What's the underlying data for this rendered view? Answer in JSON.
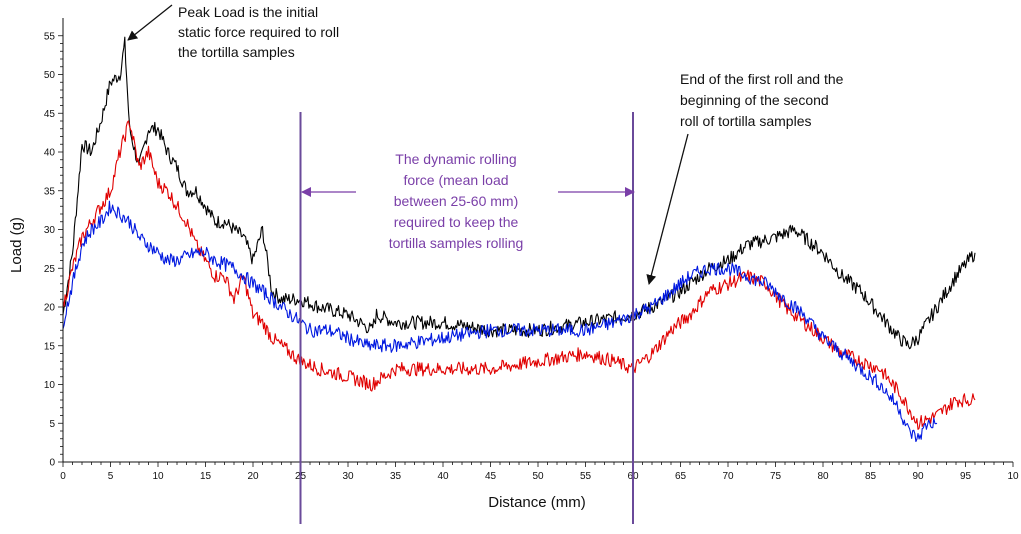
{
  "chart_data": {
    "type": "line",
    "xlabel": "Distance (mm)",
    "ylabel": "Load (g)",
    "xlim": [
      0,
      100
    ],
    "ylim": [
      0,
      56
    ],
    "x_ticks": [
      "0",
      "5",
      "10",
      "15",
      "20",
      "25",
      "30",
      "35",
      "40",
      "45",
      "50",
      "55",
      "60",
      "65",
      "70",
      "75",
      "80",
      "85",
      "90",
      "95",
      "10"
    ],
    "y_ticks": [
      "0",
      "5",
      "10",
      "15",
      "20",
      "25",
      "30",
      "35",
      "40",
      "45",
      "50",
      "55"
    ],
    "grid": false,
    "series": [
      {
        "color": "#000000",
        "points": [
          [
            0,
            19
          ],
          [
            1,
            27
          ],
          [
            1.5,
            34
          ],
          [
            2,
            41
          ],
          [
            3,
            40
          ],
          [
            4,
            44
          ],
          [
            5,
            49
          ],
          [
            6,
            50
          ],
          [
            6.5,
            54
          ],
          [
            7,
            43
          ],
          [
            8,
            38
          ],
          [
            9,
            43
          ],
          [
            10,
            43
          ],
          [
            11,
            40
          ],
          [
            12,
            38
          ],
          [
            13,
            35
          ],
          [
            14,
            35
          ],
          [
            15,
            33
          ],
          [
            16,
            31
          ],
          [
            17,
            31
          ],
          [
            18,
            30
          ],
          [
            19,
            29
          ],
          [
            20,
            26
          ],
          [
            21,
            30
          ],
          [
            22,
            22
          ],
          [
            23,
            21
          ],
          [
            25,
            21
          ],
          [
            27,
            20
          ],
          [
            30,
            19
          ],
          [
            32.5,
            17
          ],
          [
            33,
            19
          ],
          [
            35,
            18
          ],
          [
            40,
            18
          ],
          [
            45,
            17
          ],
          [
            50,
            17
          ],
          [
            55,
            18
          ],
          [
            60,
            19
          ],
          [
            62,
            20
          ],
          [
            65,
            22
          ],
          [
            68,
            25
          ],
          [
            70,
            26
          ],
          [
            72,
            28
          ],
          [
            75,
            29
          ],
          [
            77,
            30
          ],
          [
            78,
            29
          ],
          [
            80,
            27
          ],
          [
            82,
            24
          ],
          [
            84,
            22
          ],
          [
            86,
            19
          ],
          [
            88,
            16
          ],
          [
            89,
            15
          ],
          [
            90,
            16
          ],
          [
            92,
            20
          ],
          [
            94,
            24
          ],
          [
            96,
            27
          ]
        ]
      },
      {
        "color": "#e00000",
        "points": [
          [
            0,
            20
          ],
          [
            1,
            25
          ],
          [
            2,
            29
          ],
          [
            3,
            31
          ],
          [
            4,
            33
          ],
          [
            5,
            35
          ],
          [
            6,
            40
          ],
          [
            7,
            44
          ],
          [
            8,
            38
          ],
          [
            9,
            40
          ],
          [
            10,
            36
          ],
          [
            11,
            35
          ],
          [
            12,
            33
          ],
          [
            13,
            31
          ],
          [
            14,
            28
          ],
          [
            15,
            26
          ],
          [
            16,
            24
          ],
          [
            17,
            24
          ],
          [
            18,
            21
          ],
          [
            19,
            24
          ],
          [
            20,
            19
          ],
          [
            21,
            18
          ],
          [
            22,
            16
          ],
          [
            24,
            14
          ],
          [
            25,
            13
          ],
          [
            27,
            12
          ],
          [
            30,
            11
          ],
          [
            32.5,
            10
          ],
          [
            35,
            12
          ],
          [
            40,
            12
          ],
          [
            45,
            12
          ],
          [
            50,
            13
          ],
          [
            55,
            14
          ],
          [
            58,
            13
          ],
          [
            60,
            12
          ],
          [
            62,
            14
          ],
          [
            64,
            17
          ],
          [
            66,
            19
          ],
          [
            68,
            22
          ],
          [
            70,
            23
          ],
          [
            72,
            24
          ],
          [
            74,
            23
          ],
          [
            76,
            20
          ],
          [
            78,
            18
          ],
          [
            80,
            16
          ],
          [
            82,
            14
          ],
          [
            84,
            13
          ],
          [
            86,
            12
          ],
          [
            88,
            9
          ],
          [
            89,
            7
          ],
          [
            90,
            5
          ],
          [
            92,
            6
          ],
          [
            94,
            8
          ],
          [
            96,
            8
          ]
        ]
      },
      {
        "color": "#0018e0",
        "points": [
          [
            0,
            18
          ],
          [
            1,
            23
          ],
          [
            2,
            28
          ],
          [
            3,
            30
          ],
          [
            4,
            31
          ],
          [
            5,
            33
          ],
          [
            6,
            32
          ],
          [
            7,
            31
          ],
          [
            8,
            29
          ],
          [
            9,
            28
          ],
          [
            10,
            27
          ],
          [
            11,
            26
          ],
          [
            12,
            26
          ],
          [
            14,
            27
          ],
          [
            15,
            27
          ],
          [
            16,
            26
          ],
          [
            18,
            25
          ],
          [
            20,
            23
          ],
          [
            22,
            21
          ],
          [
            24,
            19
          ],
          [
            26,
            17
          ],
          [
            28,
            17
          ],
          [
            30,
            16
          ],
          [
            32,
            15
          ],
          [
            35,
            15
          ],
          [
            40,
            16
          ],
          [
            45,
            17
          ],
          [
            50,
            17
          ],
          [
            55,
            17
          ],
          [
            58,
            18
          ],
          [
            60,
            19
          ],
          [
            62,
            20
          ],
          [
            64,
            22
          ],
          [
            66,
            24
          ],
          [
            68,
            25
          ],
          [
            70,
            25
          ],
          [
            72,
            24
          ],
          [
            74,
            23
          ],
          [
            76,
            21
          ],
          [
            78,
            19
          ],
          [
            80,
            16
          ],
          [
            82,
            14
          ],
          [
            84,
            12
          ],
          [
            86,
            10
          ],
          [
            88,
            7
          ],
          [
            89,
            4
          ],
          [
            90,
            3
          ],
          [
            91,
            5
          ],
          [
            92,
            5
          ]
        ]
      }
    ],
    "vertical_markers": [
      25,
      60
    ],
    "annotations": {
      "peak_lines": [
        "Peak Load is the initial",
        "static force required to roll",
        "the tortilla samples"
      ],
      "end_lines": [
        "End of the first roll and the",
        "beginning of the second",
        "roll of tortilla samples"
      ],
      "dynamic_lines": [
        "The dynamic rolling",
        "force (mean load",
        "between 25-60 mm)",
        "required to keep the",
        "tortilla samples rolling"
      ]
    }
  }
}
